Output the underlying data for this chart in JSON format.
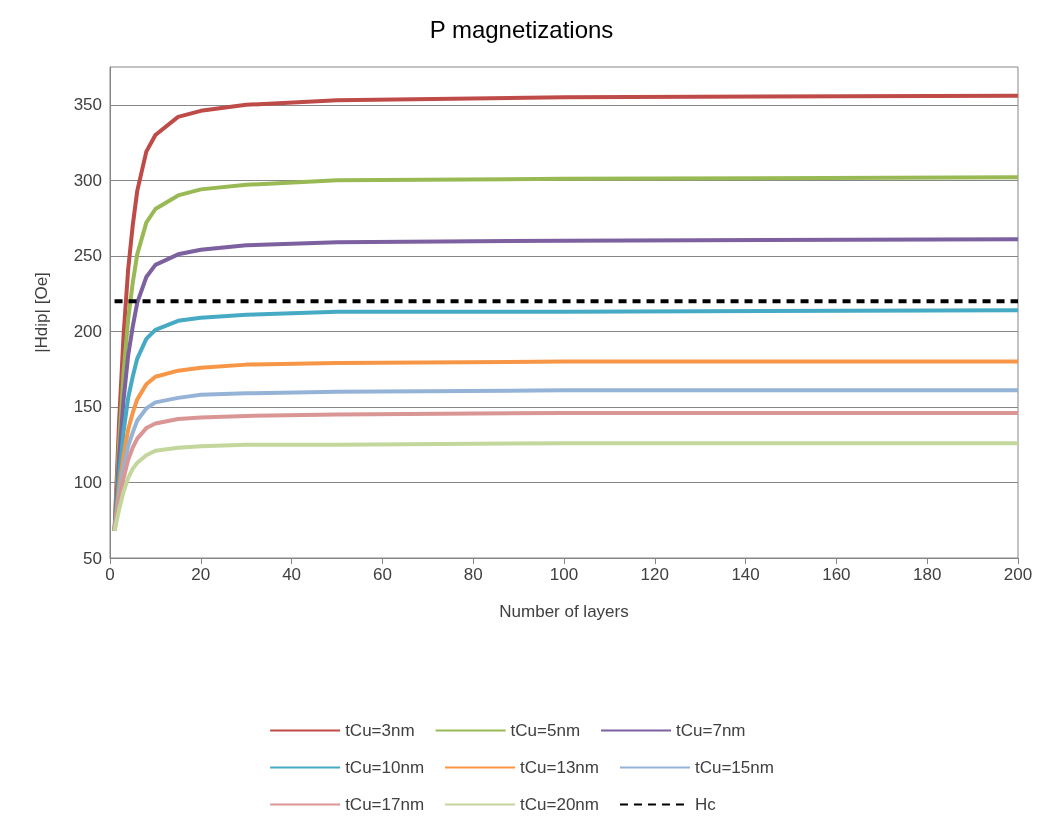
{
  "chart_data": {
    "type": "line",
    "title": "P magnetizations",
    "xlabel": "Number of layers",
    "ylabel": "|Hdip| [Oe]",
    "x": [
      1,
      2,
      3,
      4,
      5,
      6,
      8,
      10,
      15,
      20,
      30,
      50,
      100,
      200
    ],
    "series": [
      {
        "name": "tCu=3nm",
        "color": "#be4b48",
        "values": [
          68,
          140,
          198,
          241,
          270,
          293,
          319,
          330,
          342,
          346,
          350,
          353,
          355,
          356
        ]
      },
      {
        "name": "tCu=5nm",
        "color": "#98b954",
        "values": [
          68,
          126,
          173,
          208,
          232,
          251,
          272,
          281,
          290,
          294,
          297,
          300,
          301,
          302
        ]
      },
      {
        "name": "tCu=7nm",
        "color": "#7d60a0",
        "values": [
          68,
          116,
          155,
          184,
          203,
          219,
          236,
          244,
          251,
          254,
          257,
          259,
          260,
          261
        ]
      },
      {
        "name": "tCu=10nm",
        "color": "#46aac5",
        "values": [
          68,
          104,
          134,
          156,
          170,
          182,
          195,
          201,
          207,
          209,
          211,
          213,
          213,
          214
        ]
      },
      {
        "name": "tCu=13nm",
        "color": "#f79646",
        "values": [
          68,
          96,
          118,
          135,
          146,
          155,
          165,
          170,
          174,
          176,
          178,
          179,
          180,
          180
        ]
      },
      {
        "name": "tCu=15nm",
        "color": "#95b3d7",
        "values": [
          68,
          91,
          110,
          124,
          133,
          141,
          149,
          153,
          156,
          158,
          159,
          160,
          161,
          161
        ]
      },
      {
        "name": "tCu=17nm",
        "color": "#d99694",
        "values": [
          68,
          88,
          103,
          115,
          123,
          129,
          136,
          139,
          142,
          143,
          144,
          145,
          146,
          146
        ]
      },
      {
        "name": "tCu=20nm",
        "color": "#c3d69b",
        "values": [
          68,
          82,
          94,
          103,
          109,
          113,
          118,
          121,
          123,
          124,
          125,
          125,
          126,
          126
        ]
      },
      {
        "name": "Hc",
        "color": "#000000",
        "x": [
          1,
          200
        ],
        "values": [
          220,
          220
        ],
        "line_style": "dashed"
      }
    ],
    "xlim": [
      0,
      200
    ],
    "xticks": [
      0,
      20,
      40,
      60,
      80,
      100,
      120,
      140,
      160,
      180,
      200
    ],
    "ylim": [
      50,
      375
    ],
    "yticks": [
      50,
      100,
      150,
      200,
      250,
      300,
      350
    ],
    "grid": "y",
    "legend": "bottom",
    "marker": "none",
    "line_style": "solid"
  }
}
